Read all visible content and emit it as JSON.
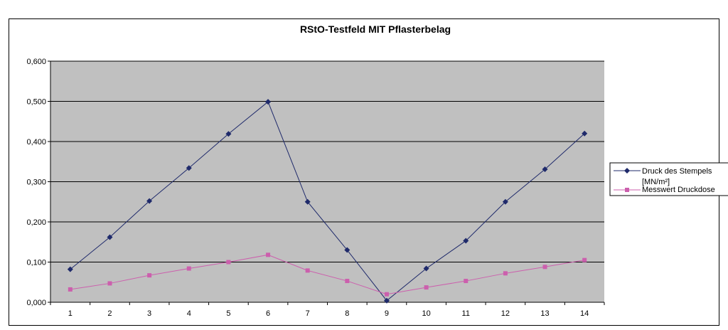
{
  "chart_data": {
    "type": "line",
    "title": "RStO-Testfeld MIT Pflasterbelag",
    "categories": [
      "1",
      "2",
      "3",
      "4",
      "5",
      "6",
      "7",
      "8",
      "9",
      "10",
      "11",
      "12",
      "13",
      "14"
    ],
    "ylim": [
      0,
      0.6
    ],
    "yticks": [
      "0,000",
      "0,100",
      "0,200",
      "0,300",
      "0,400",
      "0,500",
      "0,600"
    ],
    "grid": true,
    "legend": "right",
    "series": [
      {
        "name": "Druck des Stempels [MN/m²]",
        "legend_line1": "Druck des Stempels",
        "legend_line2": "[MN/m²]",
        "color": "#1f2a6b",
        "marker": "diamond",
        "values": [
          0.082,
          0.162,
          0.252,
          0.334,
          0.419,
          0.499,
          0.25,
          0.13,
          0.004,
          0.084,
          0.153,
          0.25,
          0.331,
          0.42
        ]
      },
      {
        "name": "Messwert Druckdose",
        "legend_line1": "Messwert Druckdose",
        "color": "#cc5fad",
        "marker": "square",
        "values": [
          0.032,
          0.047,
          0.067,
          0.084,
          0.1,
          0.118,
          0.079,
          0.053,
          0.02,
          0.037,
          0.053,
          0.072,
          0.088,
          0.105
        ]
      }
    ]
  }
}
